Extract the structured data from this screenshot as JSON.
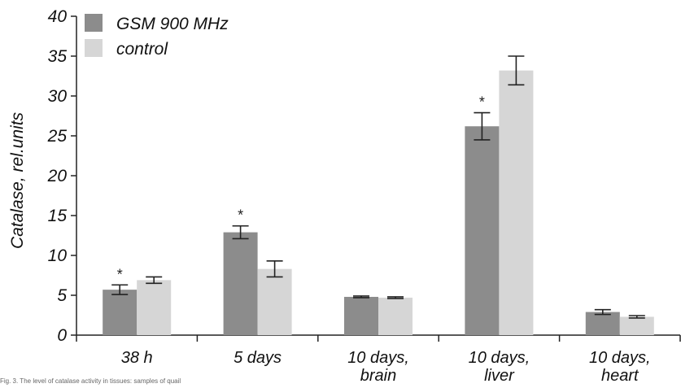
{
  "chart_data": {
    "type": "bar",
    "ylabel": "Catalase, rel.units",
    "ylim": [
      0,
      40
    ],
    "yticks": [
      0,
      5,
      10,
      15,
      20,
      25,
      30,
      35,
      40
    ],
    "categories": [
      [
        "38 h"
      ],
      [
        "5 days"
      ],
      [
        "10 days,",
        "brain"
      ],
      [
        "10 days,",
        "liver"
      ],
      [
        "10 days,",
        "heart"
      ]
    ],
    "series": [
      {
        "name": "GSM 900 MHz",
        "color": "#8c8c8c",
        "values": [
          5.7,
          12.9,
          4.8,
          26.2,
          2.9
        ],
        "errors": [
          0.6,
          0.8,
          0.1,
          1.7,
          0.3
        ],
        "significant": [
          true,
          true,
          false,
          true,
          false
        ]
      },
      {
        "name": "control",
        "color": "#d6d6d6",
        "values": [
          6.9,
          8.3,
          4.7,
          33.2,
          2.3
        ],
        "errors": [
          0.4,
          1.0,
          0.1,
          1.8,
          0.15
        ],
        "significant": [
          false,
          false,
          false,
          false,
          false
        ]
      }
    ],
    "significance_marker": "*",
    "legend_position": "top-left",
    "grid": false
  },
  "caption": "Fig. 3. The level of catalase activity in tissues: samples of quail"
}
